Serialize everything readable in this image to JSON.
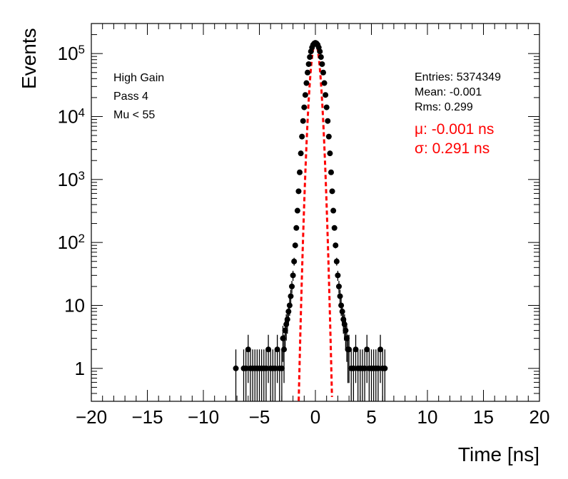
{
  "chart_data": {
    "type": "scatter",
    "xlabel": "Time [ns]",
    "ylabel": "Events",
    "xlim": [
      -20,
      20
    ],
    "ylim": [
      0.3,
      300000
    ],
    "yscale": "log",
    "grid": false,
    "x_ticks": [
      -20,
      -15,
      -10,
      -5,
      0,
      5,
      10,
      15,
      20
    ],
    "x_tick_labels": [
      "−20",
      "−15",
      "−10",
      "−5",
      "0",
      "5",
      "10",
      "15",
      "20"
    ],
    "y_ticks": [
      1,
      10,
      100,
      1000,
      10000,
      100000
    ],
    "y_tick_labels": [
      {
        "base": "1",
        "exp": ""
      },
      {
        "base": "10",
        "exp": ""
      },
      {
        "base": "10",
        "exp": "2"
      },
      {
        "base": "10",
        "exp": "3"
      },
      {
        "base": "10",
        "exp": "4"
      },
      {
        "base": "10",
        "exp": "5"
      }
    ],
    "annotations_left": [
      "High Gain",
      "Pass 4",
      "Mu < 55"
    ],
    "stats": [
      "Entries: 5374349",
      "Mean: -0.001",
      "Rms: 0.299"
    ],
    "fit_text": [
      "μ: -0.001 ns",
      "σ: 0.291 ns"
    ],
    "histogram": {
      "color": "#000000",
      "x": [
        -7.1,
        -6.4,
        -6.2,
        -6.0,
        -5.8,
        -5.6,
        -5.4,
        -5.2,
        -5.0,
        -4.8,
        -4.6,
        -4.4,
        -4.2,
        -4.0,
        -3.8,
        -3.6,
        -3.4,
        -3.2,
        -3.0,
        -2.9,
        -2.8,
        -2.7,
        -2.6,
        -2.5,
        -2.4,
        -2.3,
        -2.2,
        -2.1,
        -2.0,
        -1.9,
        -1.8,
        -1.7,
        -1.6,
        -1.5,
        -1.4,
        -1.3,
        -1.2,
        -1.1,
        -1.0,
        -0.9,
        -0.8,
        -0.7,
        -0.6,
        -0.5,
        -0.4,
        -0.3,
        -0.2,
        -0.1,
        0.0,
        0.1,
        0.2,
        0.3,
        0.4,
        0.5,
        0.6,
        0.7,
        0.8,
        0.9,
        1.0,
        1.1,
        1.2,
        1.3,
        1.4,
        1.5,
        1.6,
        1.7,
        1.8,
        1.9,
        2.0,
        2.1,
        2.2,
        2.3,
        2.4,
        2.5,
        2.6,
        2.7,
        2.8,
        2.9,
        3.0,
        3.2,
        3.4,
        3.6,
        3.8,
        4.0,
        4.2,
        4.4,
        4.6,
        4.8,
        5.0,
        5.2,
        5.4,
        5.6,
        5.8,
        6.0,
        6.2
      ],
      "y": [
        1,
        1,
        1,
        2,
        1,
        1,
        1,
        1,
        1,
        1,
        1,
        1,
        2,
        1,
        1,
        1,
        2,
        1,
        1,
        3,
        2,
        4,
        5,
        6,
        8,
        10,
        14,
        20,
        30,
        50,
        90,
        170,
        320,
        650,
        1300,
        2600,
        4800,
        8500,
        14000,
        22000,
        34000,
        50000,
        68000,
        88000,
        108000,
        125000,
        138000,
        145000,
        148000,
        145000,
        138000,
        125000,
        108000,
        88000,
        68000,
        50000,
        34000,
        22000,
        14000,
        8500,
        4800,
        2600,
        1300,
        650,
        320,
        170,
        90,
        50,
        30,
        20,
        14,
        10,
        8,
        6,
        5,
        4,
        3,
        2,
        2,
        1,
        1,
        2,
        1,
        1,
        1,
        1,
        2,
        1,
        1,
        1,
        1,
        1,
        2,
        1,
        1
      ]
    },
    "fit": {
      "type": "gaussian",
      "color": "#ff0000",
      "amplitude": 148000,
      "mean": -0.001,
      "sigma": 0.291
    }
  },
  "colors": {
    "frame": "#000000",
    "data": "#000000",
    "fit": "#ff0000"
  }
}
